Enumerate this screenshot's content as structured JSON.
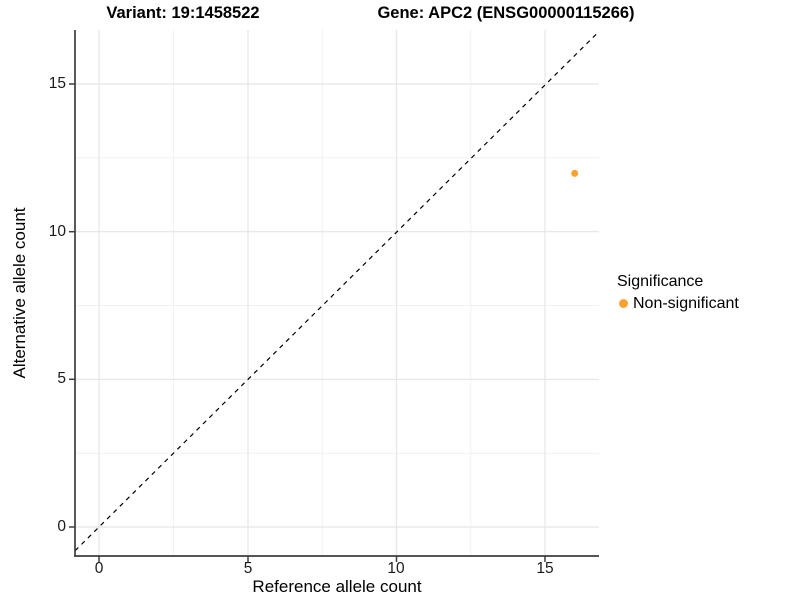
{
  "header": {
    "variant_title": "Variant: 19:1458522",
    "gene_title": "Gene: APC2 (ENSG00000115266)"
  },
  "chart_data": {
    "type": "scatter",
    "title": "Variant: 19:1458522   Gene: APC2 (ENSG00000115266)",
    "xlabel": "Reference allele count",
    "ylabel": "Alternative allele count",
    "xlim": [
      -0.8,
      16.8
    ],
    "ylim": [
      -0.8,
      16.8
    ],
    "x_ticks": [
      "0",
      "5",
      "10",
      "15"
    ],
    "y_ticks": [
      "0",
      "5",
      "10",
      "15"
    ],
    "grid": "major and minor gridlines, light gray on white",
    "reference_line": "dashed black identity line y = x",
    "series": [
      {
        "name": "Non-significant",
        "color": "#F9A231",
        "points": [
          {
            "x": 16,
            "y": 12
          }
        ]
      }
    ],
    "legend": {
      "title": "Significance",
      "position": "right",
      "entries": [
        {
          "label": "Non-significant",
          "color": "#F9A231",
          "marker": "circle"
        }
      ]
    }
  },
  "colors": {
    "background": "#FFFFFF",
    "grid_major": "#E5E5E5",
    "grid_minor": "#F1F1F1",
    "axis_line": "#3D3D3D",
    "point": "#F9A231",
    "text": "#000000"
  }
}
